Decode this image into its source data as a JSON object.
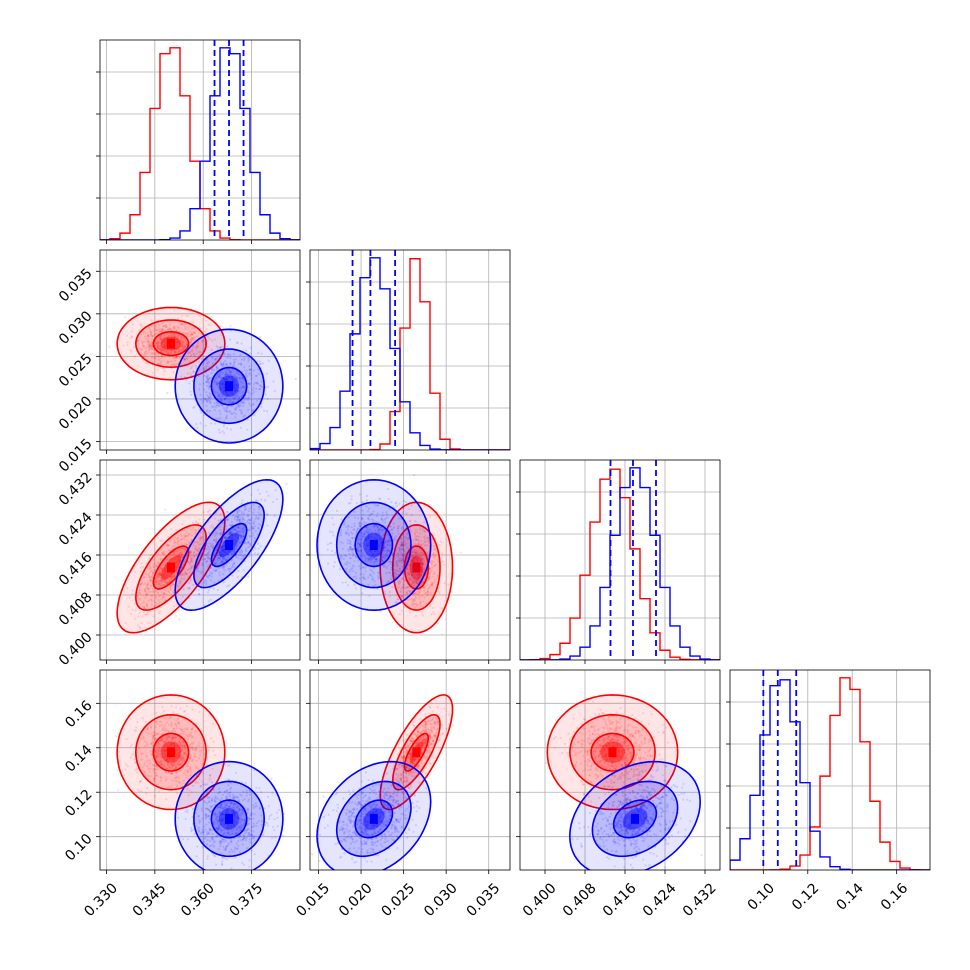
{
  "chart_data": {
    "type": "corner",
    "title": "",
    "grid": true,
    "parameters": [
      {
        "range": [
          0.328,
          0.39
        ],
        "ticks": [
          "0.330",
          "0.345",
          "0.360",
          "0.375"
        ]
      },
      {
        "range": [
          0.014,
          0.0375
        ],
        "ticks": [
          "0.015",
          "0.020",
          "0.025",
          "0.030",
          "0.035"
        ]
      },
      {
        "range": [
          0.395,
          0.435
        ],
        "ticks": [
          "0.400",
          "0.408",
          "0.416",
          "0.424",
          "0.432"
        ]
      },
      {
        "range": [
          0.085,
          0.175
        ],
        "ticks": [
          "0.10",
          "0.12",
          "0.14",
          "0.16"
        ]
      }
    ],
    "series": [
      {
        "color": "#ff0000",
        "mean": [
          0.35,
          0.0265,
          0.4135,
          0.138
        ],
        "std": [
          0.0055,
          0.0014,
          0.0043,
          0.0085
        ],
        "corr": [
          [
            1,
            0,
            0.7,
            0
          ],
          [
            0,
            1,
            0,
            0.75
          ],
          [
            0.7,
            0,
            1,
            0
          ],
          [
            0,
            0.75,
            0,
            1
          ]
        ]
      },
      {
        "color": "#0000ff",
        "mean": [
          0.368,
          0.0215,
          0.418,
          0.108
        ],
        "std": [
          0.0055,
          0.0022,
          0.0043,
          0.0085
        ],
        "corr": [
          [
            1,
            0,
            0.7,
            0
          ],
          [
            0,
            1,
            0,
            0.3
          ],
          [
            0.7,
            0,
            1,
            0.3
          ],
          [
            0,
            0.3,
            0.3,
            1
          ]
        ]
      }
    ],
    "quantiles": {
      "color": "#0000ff",
      "values": [
        [
          0.3635,
          0.368,
          0.3725
        ],
        [
          0.019,
          0.0211,
          0.024
        ],
        [
          0.4131,
          0.4176,
          0.4222
        ],
        [
          0.1,
          0.1065,
          0.1148
        ]
      ]
    }
  }
}
